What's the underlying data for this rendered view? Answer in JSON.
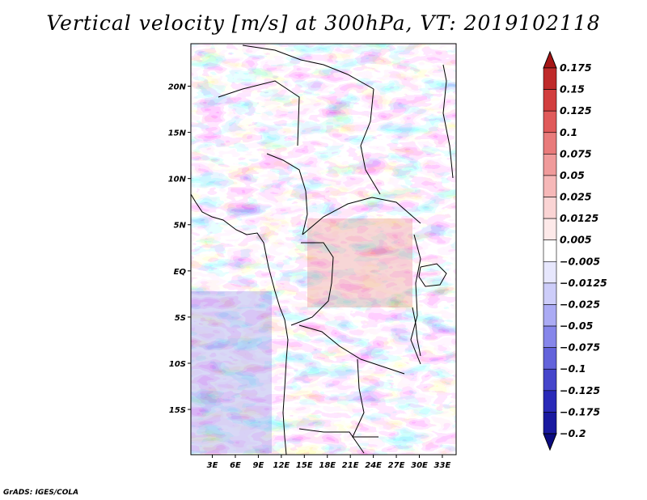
{
  "chart_data": {
    "type": "heatmap",
    "title": "Vertical velocity [m/s] at 300hPa, VT: 2019102118",
    "variable": "Vertical velocity",
    "units": "m/s",
    "level": "300hPa",
    "valid_time": "2019102118",
    "x_ticks": [
      "3E",
      "6E",
      "9E",
      "12E",
      "15E",
      "18E",
      "21E",
      "24E",
      "27E",
      "30E",
      "33E"
    ],
    "x_tick_values": [
      3,
      6,
      9,
      12,
      15,
      18,
      21,
      24,
      27,
      30,
      33
    ],
    "y_ticks": [
      "20N",
      "15N",
      "10N",
      "5N",
      "EQ",
      "5S",
      "10S",
      "15S"
    ],
    "y_tick_values": [
      20,
      15,
      10,
      5,
      0,
      -5,
      -10,
      -15
    ],
    "xlim": [
      0.2,
      34.8
    ],
    "ylim": [
      -19.9,
      24.6
    ],
    "colorbar": {
      "levels": [
        "0.175",
        "0.15",
        "0.125",
        "0.1",
        "0.075",
        "0.05",
        "0.025",
        "0.0125",
        "0.005",
        "−0.005",
        "−0.0125",
        "−0.025",
        "−0.05",
        "−0.075",
        "−0.1",
        "−0.125",
        "−0.175",
        "−0.2"
      ],
      "colors": [
        "#a51616",
        "#bf2a2a",
        "#d23e3e",
        "#e05a5a",
        "#e97b7b",
        "#f09b9b",
        "#f6b8b8",
        "#fad4d4",
        "#fde9e9",
        "#ffffff",
        "#e7e7fd",
        "#cdcdf9",
        "#ababf4",
        "#8686ea",
        "#6363db",
        "#4545cb",
        "#2a2ab8",
        "#1a1aa0",
        "#0c0c80"
      ]
    }
  },
  "footer": {
    "credit": "GrADS: IGES/COLA"
  },
  "colors": {
    "frame": "#000000",
    "positive": "#e05a5a",
    "negative": "#6363db"
  }
}
